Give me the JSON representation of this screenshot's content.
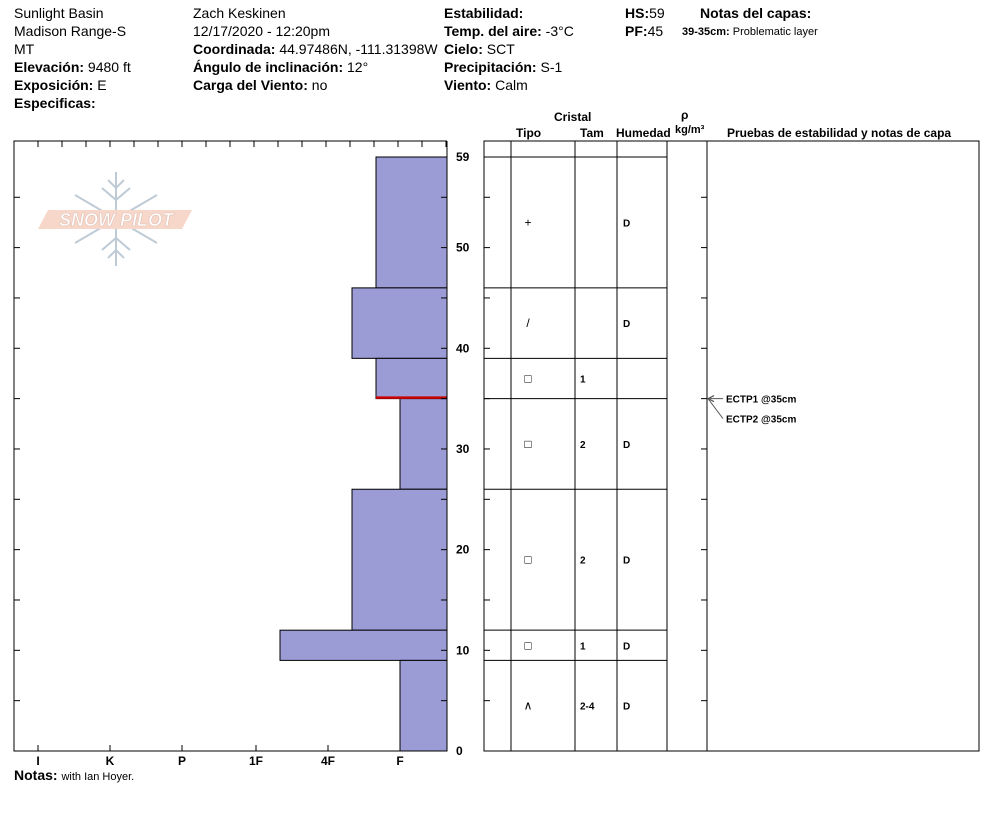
{
  "header": {
    "location": [
      "Sunlight Basin",
      "Madison Range-S",
      "MT"
    ],
    "elevation_label": "Elevación:",
    "elevation": "9480 ft",
    "aspect_label": "Exposición:",
    "aspect": "E",
    "specifics_label": "Especificas:",
    "observer": "Zach Keskinen",
    "datetime": "12/17/2020 - 12:20pm",
    "coord_label": "Coordinada:",
    "coord": "44.97486N, -111.31398W",
    "slope_label": "Ángulo de inclinación:",
    "slope": "12°",
    "wind_load_label": "Carga del Viento:",
    "wind_load": "no",
    "stability_label": "Estabilidad:",
    "air_temp_label": "Temp. del aire:",
    "air_temp": "-3°C",
    "sky_label": "Cielo:",
    "sky": "SCT",
    "precip_label": "Precipitación:",
    "precip": "S-1",
    "wind_label": "Viento:",
    "wind": "Calm",
    "hs_label": "HS:",
    "hs": "59",
    "pf_label": "PF:",
    "pf": "45",
    "layer_notes_label": "Notas del capas:",
    "layer_note_range": "39-35cm:",
    "layer_note_text": "Problematic layer"
  },
  "logo": {
    "text": "SNOW PILOT"
  },
  "notes": {
    "label": "Notas:",
    "text": "with Ian Hoyer."
  },
  "columns": {
    "crystal": "Cristal",
    "type": "Tipo",
    "size": "Tam",
    "moisture": "Humedad",
    "rho": "ρ",
    "density_unit": "kg/m³",
    "tests": "Pruebas de estabilidad y notas de capa"
  },
  "chart_data": {
    "type": "bar",
    "title": "",
    "xlabel": "",
    "ylabel": "",
    "hardness_categories": [
      "I",
      "K",
      "P",
      "1F",
      "4F",
      "F"
    ],
    "ylim": [
      0,
      59
    ],
    "ytick_labels": [
      "0",
      "10",
      "20",
      "30",
      "40",
      "50",
      "59"
    ],
    "colors": {
      "layer_fill": "#9b9bd6",
      "weak_layer": "#cc0000"
    },
    "weak_layer_depth": 35,
    "layers": [
      {
        "top": 59,
        "bottom": 46,
        "hardness": "F+",
        "type": "+",
        "size": "",
        "moisture": "D"
      },
      {
        "top": 46,
        "bottom": 39,
        "hardness": "4F-",
        "type": "/",
        "size": "",
        "moisture": "D"
      },
      {
        "top": 39,
        "bottom": 35,
        "hardness": "F+",
        "type": "□",
        "size": "1",
        "moisture": ""
      },
      {
        "top": 35,
        "bottom": 26,
        "hardness": "F",
        "type": "□",
        "size": "2",
        "moisture": "D"
      },
      {
        "top": 26,
        "bottom": 12,
        "hardness": "4F-",
        "type": "□",
        "size": "2",
        "moisture": "D"
      },
      {
        "top": 12,
        "bottom": 9,
        "hardness": "1F-",
        "type": "□",
        "size": "1",
        "moisture": "D"
      },
      {
        "top": 9,
        "bottom": 0,
        "hardness": "F",
        "type": "∧",
        "size": "2-4",
        "moisture": "D"
      }
    ],
    "tests": [
      {
        "label": "ECTP1 @35cm",
        "depth": 35
      },
      {
        "label": "ECTP2 @35cm",
        "depth": 35
      }
    ]
  }
}
